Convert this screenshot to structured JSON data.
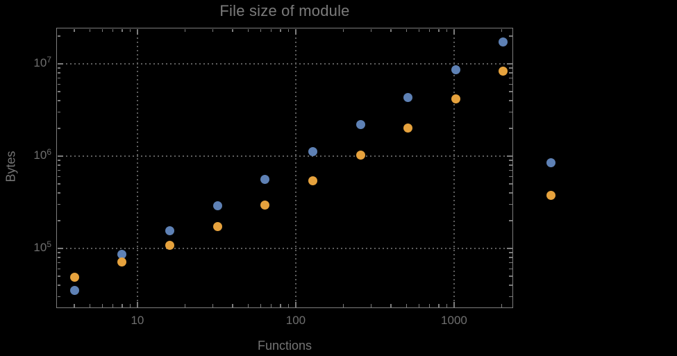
{
  "chart_data": {
    "type": "scatter",
    "title": "File size of module",
    "xlabel": "Functions",
    "ylabel": "Bytes",
    "x_scale": "log",
    "y_scale": "log",
    "grid": "dotted",
    "legend": "none",
    "xlim": [
      3.07,
      2360
    ],
    "ylim": [
      22600,
      24600000
    ],
    "x": [
      4,
      8,
      16,
      32,
      64,
      128,
      256,
      512,
      1024,
      2048,
      4096
    ],
    "series": [
      {
        "name": "blue-series",
        "color": "#5e81b5",
        "values": [
          35000,
          87000,
          155000,
          290000,
          560000,
          1120000,
          2200000,
          4350000,
          8700000,
          17400000,
          850000
        ]
      },
      {
        "name": "orange-series",
        "color": "#e6a23d",
        "values": [
          49000,
          71000,
          108000,
          172000,
          296000,
          540000,
          1030000,
          2030000,
          4200000,
          8300000,
          375000
        ]
      }
    ],
    "x_ticks": [
      {
        "value": 10,
        "label": "10"
      },
      {
        "value": 100,
        "label": "100"
      },
      {
        "value": 1000,
        "label": "1000"
      }
    ],
    "y_ticks": [
      {
        "value": 100000,
        "base": "10",
        "exp": "5"
      },
      {
        "value": 1000000,
        "base": "10",
        "exp": "6"
      },
      {
        "value": 10000000,
        "base": "10",
        "exp": "7"
      }
    ]
  },
  "colors": {
    "background": "#000000",
    "frame": "#7d7d7d",
    "grid": "#5f5f5f",
    "text": "#747474",
    "tick_text": "#6f6f6f"
  }
}
